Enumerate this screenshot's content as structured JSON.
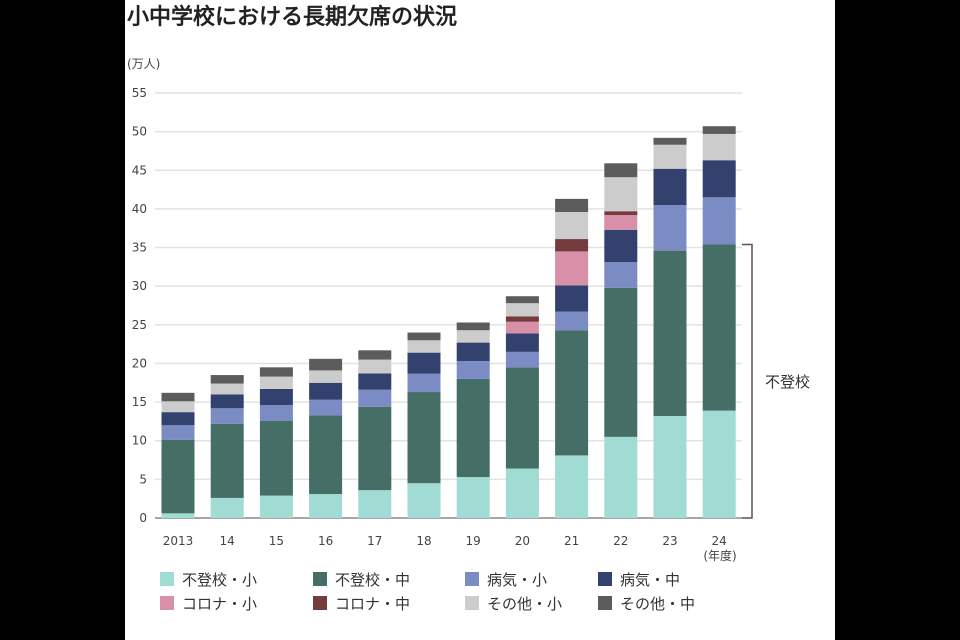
{
  "chart_data": {
    "type": "bar",
    "stacked": true,
    "title": "小中学校における長期欠席の状況",
    "unit_label": "(万人)",
    "xlabel_suffix": "(年度)",
    "categories": [
      "2013",
      "14",
      "15",
      "16",
      "17",
      "18",
      "19",
      "20",
      "21",
      "22",
      "23",
      "24"
    ],
    "ylim": [
      0,
      55
    ],
    "yticks": [
      0,
      5,
      10,
      15,
      20,
      25,
      30,
      35,
      40,
      45,
      50,
      55
    ],
    "grid": true,
    "legend_position": "bottom",
    "series": [
      {
        "name": "不登校・小",
        "color": "#a0dcd4",
        "values": [
          0.6,
          2.6,
          2.9,
          3.1,
          3.6,
          4.5,
          5.3,
          6.4,
          8.1,
          10.5,
          13.2,
          13.9
        ]
      },
      {
        "name": "不登校・中",
        "color": "#456e66",
        "values": [
          9.5,
          9.6,
          9.7,
          10.2,
          10.8,
          11.8,
          12.7,
          13.1,
          16.2,
          19.3,
          21.4,
          21.5
        ]
      },
      {
        "name": "病気・小",
        "color": "#7b8cc4",
        "values": [
          1.9,
          2.0,
          2.0,
          2.0,
          2.2,
          2.4,
          2.3,
          2.0,
          2.4,
          3.3,
          5.9,
          6.1
        ]
      },
      {
        "name": "病気・中",
        "color": "#33416e",
        "values": [
          1.7,
          1.8,
          2.1,
          2.2,
          2.1,
          2.7,
          2.4,
          2.4,
          3.4,
          4.2,
          4.7,
          4.8
        ]
      },
      {
        "name": "コロナ・小",
        "color": "#d890a8",
        "values": [
          0,
          0,
          0,
          0,
          0,
          0,
          0,
          1.5,
          4.4,
          1.9,
          0,
          0
        ]
      },
      {
        "name": "コロナ・中",
        "color": "#743c3c",
        "values": [
          0,
          0,
          0,
          0,
          0,
          0,
          0,
          0.7,
          1.6,
          0.5,
          0,
          0
        ]
      },
      {
        "name": "その他・小",
        "color": "#cccccc",
        "values": [
          1.4,
          1.4,
          1.6,
          1.6,
          1.8,
          1.6,
          1.6,
          1.7,
          3.5,
          4.4,
          3.1,
          3.4
        ]
      },
      {
        "name": "その他・中",
        "color": "#5c5c5c",
        "values": [
          1.1,
          1.1,
          1.2,
          1.5,
          1.2,
          1.0,
          1.0,
          0.9,
          1.7,
          1.8,
          0.9,
          1.0
        ]
      }
    ],
    "annotation": {
      "text": "不登校",
      "spans_series": [
        "不登校・小",
        "不登校・中"
      ],
      "category": "24"
    }
  }
}
